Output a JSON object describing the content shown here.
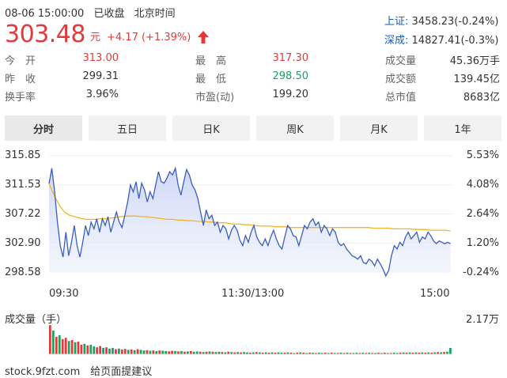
{
  "header": {
    "datetime": "08-06 15:00:00",
    "status": "已收盘",
    "timezone": "北京时间",
    "price": "303.48",
    "unit": "元",
    "change": "+4.17 (+1.39%)",
    "up_color": "#e4393c",
    "down_color": "#1aa260"
  },
  "indices": [
    {
      "label": "上证:",
      "value": "3458.23(-0.24%)"
    },
    {
      "label": "深成:",
      "value": "14827.41(-0.3%)"
    }
  ],
  "stats": {
    "col1": [
      {
        "label": "今　开",
        "value": "313.00",
        "color": "red"
      },
      {
        "label": "昨　收",
        "value": "299.31",
        "color": "normal"
      },
      {
        "label": "换手率",
        "value": "3.96%",
        "color": "normal"
      }
    ],
    "col2": [
      {
        "label": "最　高",
        "value": "317.30",
        "color": "red"
      },
      {
        "label": "最　低",
        "value": "298.50",
        "color": "green"
      },
      {
        "label": "市盈(动)",
        "value": "199.20",
        "color": "normal"
      }
    ],
    "col3": [
      {
        "label": "成交量",
        "value": "45.36万手"
      },
      {
        "label": "成交额",
        "value": "139.45亿"
      },
      {
        "label": "总市值",
        "value": "8683亿"
      }
    ]
  },
  "tabs": [
    {
      "label": "分时",
      "active": true
    },
    {
      "label": "五日",
      "active": false
    },
    {
      "label": "日K",
      "active": false
    },
    {
      "label": "周K",
      "active": false
    },
    {
      "label": "月K",
      "active": false
    },
    {
      "label": "1年",
      "active": false
    }
  ],
  "chart_data": {
    "type": "line",
    "y_left_ticks": [
      "315.85",
      "311.53",
      "307.22",
      "302.90",
      "298.58"
    ],
    "y_right_ticks": [
      "5.53%",
      "4.08%",
      "2.64%",
      "1.20%",
      "-0.24%"
    ],
    "x_ticks": [
      "09:30",
      "11:30/13:00",
      "15:00"
    ],
    "ylim": [
      298.58,
      315.85
    ],
    "price_series_color": "#3b5fc0",
    "avg_series_color": "#f0b429",
    "price": [
      311.7,
      314.0,
      310.5,
      306.0,
      302.5,
      300.8,
      304.5,
      301.0,
      303.0,
      305.5,
      302.5,
      300.8,
      303.0,
      305.5,
      304.0,
      306.0,
      305.0,
      306.5,
      304.5,
      306.5,
      305.5,
      306.8,
      304.5,
      306.0,
      307.5,
      306.0,
      305.2,
      307.0,
      309.0,
      311.5,
      310.5,
      312.0,
      309.5,
      311.8,
      310.8,
      309.0,
      310.5,
      309.5,
      311.5,
      313.5,
      312.0,
      311.8,
      312.5,
      313.5,
      313.0,
      314.0,
      311.5,
      310.0,
      312.0,
      313.8,
      313.0,
      311.5,
      310.8,
      309.5,
      307.5,
      305.5,
      307.8,
      306.5,
      307.0,
      305.5,
      306.0,
      304.5,
      305.5,
      305.0,
      303.5,
      304.8,
      305.5,
      304.8,
      303.3,
      302.5,
      304.0,
      303.0,
      304.5,
      305.5,
      303.8,
      303.0,
      302.5,
      303.5,
      302.5,
      303.8,
      304.8,
      303.5,
      302.5,
      302.0,
      303.8,
      305.5,
      305.0,
      304.0,
      303.8,
      302.5,
      304.0,
      305.5,
      305.0,
      306.0,
      306.5,
      305.5,
      306.0,
      304.5,
      305.5,
      305.0,
      304.0,
      305.0,
      304.5,
      303.0,
      302.5,
      302.8,
      302.0,
      301.5,
      301.0,
      300.8,
      300.5,
      301.0,
      300.0,
      299.8,
      300.5,
      300.2,
      299.5,
      300.5,
      299.8,
      299.0,
      298.0,
      298.8,
      301.0,
      302.5,
      302.0,
      303.0,
      302.5,
      303.8,
      304.5,
      303.5,
      304.0,
      304.5,
      303.0,
      303.8,
      303.5,
      304.5,
      304.0,
      303.2,
      302.8,
      303.2,
      303.0,
      302.8,
      303.0,
      302.8
    ],
    "avg": [
      311.7,
      310.0,
      308.5,
      307.5,
      307.0,
      306.8,
      306.6,
      306.4,
      306.4,
      306.4,
      306.5,
      306.5,
      306.6,
      306.7,
      306.8,
      306.9,
      306.9,
      306.9,
      306.8,
      306.8,
      306.7,
      306.6,
      306.5,
      306.4,
      306.4,
      306.3,
      306.3,
      306.2,
      306.2,
      306.1,
      306.1,
      306.0,
      306.0,
      305.9,
      305.9,
      305.8,
      305.7,
      305.7,
      305.6,
      305.6,
      305.5,
      305.4,
      305.4,
      305.4,
      305.3,
      305.3,
      305.3,
      305.2,
      305.2,
      305.2,
      305.2,
      305.2,
      305.2,
      305.2,
      305.2,
      305.2,
      305.2,
      305.2,
      305.2,
      305.2,
      305.2,
      305.2,
      305.2,
      305.1,
      305.1,
      305.1,
      305.1,
      305.0,
      305.0,
      305.0,
      305.0,
      304.9,
      304.9,
      304.9,
      304.8,
      304.8,
      304.8,
      304.8,
      304.7
    ],
    "volume_label": "成交量（手）",
    "volume_max_label": "2.17万",
    "volume": [
      0.92,
      0.75,
      0.55,
      0.6,
      0.48,
      0.52,
      0.42,
      0.45,
      0.38,
      0.4,
      0.3,
      0.33,
      0.28,
      0.3,
      0.25,
      0.22,
      0.26,
      0.2,
      0.22,
      0.18,
      0.2,
      0.16,
      0.18,
      0.15,
      0.17,
      0.14,
      0.15,
      0.13,
      0.16,
      0.14,
      0.12,
      0.13,
      0.11,
      0.12,
      0.1,
      0.12,
      0.11,
      0.1,
      0.09,
      0.11,
      0.1,
      0.09,
      0.1,
      0.08,
      0.09,
      0.1,
      0.08,
      0.09,
      0.08,
      0.07,
      0.08,
      0.09,
      0.08,
      0.07,
      0.08,
      0.07,
      0.06,
      0.08,
      0.07,
      0.06,
      0.07,
      0.06,
      0.07,
      0.06,
      0.05,
      0.06,
      0.07,
      0.06,
      0.05,
      0.06,
      0.05,
      0.06,
      0.05,
      0.06,
      0.05,
      0.05,
      0.06,
      0.05,
      0.04,
      0.05,
      0.06,
      0.05,
      0.04,
      0.05,
      0.05,
      0.04,
      0.05,
      0.04,
      0.05,
      0.04,
      0.05,
      0.04,
      0.04,
      0.05,
      0.04,
      0.05,
      0.04,
      0.04,
      0.05,
      0.04,
      0.05,
      0.04,
      0.05,
      0.04,
      0.04,
      0.05,
      0.04,
      0.05,
      0.04,
      0.04,
      0.05,
      0.04,
      0.05,
      0.06,
      0.05,
      0.06,
      0.05,
      0.06,
      0.05,
      0.06,
      0.05,
      0.06,
      0.05,
      0.06,
      0.07,
      0.06,
      0.07,
      0.08,
      0.2
    ],
    "volume_colors": [
      "r",
      "g",
      "r",
      "g",
      "r",
      "r",
      "g",
      "r",
      "g",
      "r",
      "r",
      "g",
      "r",
      "g",
      "g",
      "r",
      "r",
      "g",
      "r",
      "g",
      "g",
      "r",
      "g",
      "r",
      "r",
      "g",
      "r",
      "g",
      "r",
      "g",
      "g",
      "r",
      "g",
      "r",
      "g",
      "r",
      "g",
      "g",
      "r",
      "r",
      "g",
      "r",
      "g",
      "r",
      "g",
      "r",
      "g",
      "g",
      "r",
      "g",
      "r",
      "g",
      "r",
      "g",
      "g",
      "r",
      "g",
      "r",
      "g",
      "r",
      "g",
      "r",
      "g",
      "g",
      "r",
      "g",
      "r",
      "g",
      "r",
      "g",
      "r",
      "g",
      "r",
      "g",
      "g",
      "r",
      "g",
      "r",
      "g",
      "r",
      "g",
      "r",
      "g",
      "r",
      "g",
      "r",
      "g",
      "g",
      "r",
      "g",
      "r",
      "g",
      "r",
      "g",
      "r",
      "g",
      "r",
      "g",
      "g",
      "r",
      "g",
      "r",
      "g",
      "r",
      "g",
      "r",
      "g",
      "r",
      "g",
      "r",
      "g",
      "g",
      "r",
      "g",
      "r",
      "g",
      "r",
      "g",
      "r",
      "g",
      "r",
      "g",
      "r",
      "g",
      "r",
      "g",
      "r",
      "g",
      "g"
    ]
  },
  "footer": {
    "text": "stock.9fzt.com　给页面提建议"
  }
}
